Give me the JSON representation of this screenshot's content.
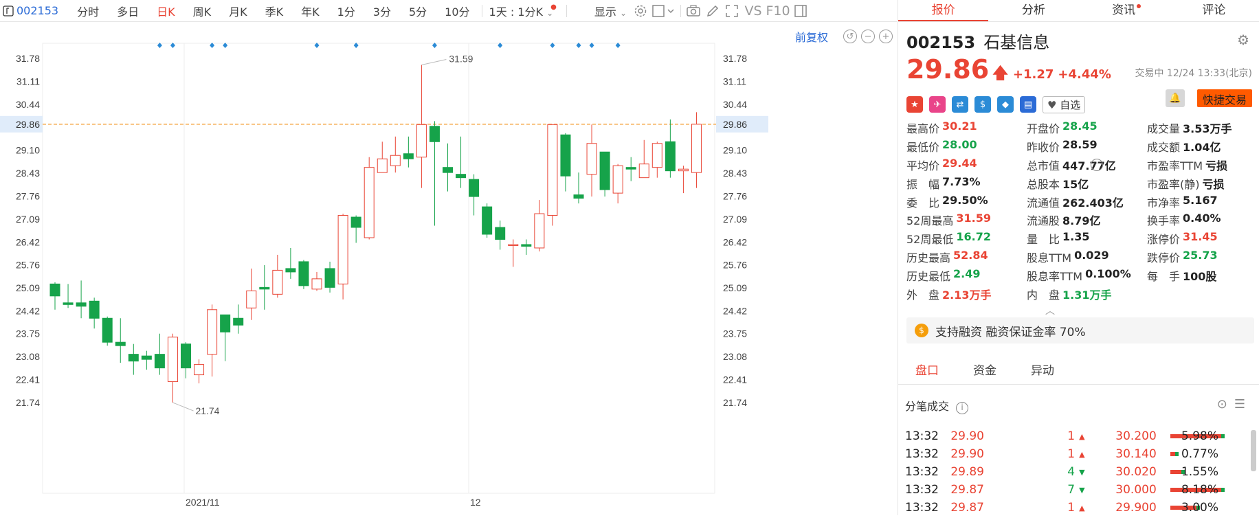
{
  "toolbar": {
    "code": "002153",
    "tabs": [
      "分时",
      "多日",
      "日K",
      "周K",
      "月K",
      "季K",
      "年K",
      "1分",
      "3分",
      "5分",
      "10分"
    ],
    "active_tab": "日K",
    "period_dropdown": "1天 : 1分K",
    "display_dropdown": "显示",
    "icons": [
      "settings-icon",
      "checkbox-icon",
      "camera-icon",
      "pencil-icon",
      "fullscreen-icon",
      "vs-icon",
      "f10-icon",
      "panel-icon"
    ],
    "vs_label": "VS",
    "f10_label": "F10"
  },
  "chart": {
    "restore_label": "前复权",
    "price_axis_left": [
      "31.78",
      "31.11",
      "30.44",
      "29.86",
      "29.10",
      "28.43",
      "27.76",
      "27.09",
      "26.42",
      "25.76",
      "25.09",
      "24.42",
      "23.75",
      "23.08",
      "22.41",
      "21.74"
    ],
    "current_price_label": "29.86",
    "high_annotation": "31.59",
    "low_annotation": "21.74",
    "x_labels": [
      "2021/11",
      "12"
    ]
  },
  "chart_data": {
    "type": "candlestick",
    "current_price": 29.86,
    "ylim": [
      21.74,
      31.78
    ],
    "candles": [
      {
        "o": 25.2,
        "c": 24.85,
        "h": 25.25,
        "l": 24.45
      },
      {
        "o": 24.65,
        "c": 24.6,
        "h": 25.2,
        "l": 24.5
      },
      {
        "o": 24.65,
        "c": 24.55,
        "h": 25.3,
        "l": 24.2
      },
      {
        "o": 24.7,
        "c": 24.2,
        "h": 24.8,
        "l": 23.9
      },
      {
        "o": 24.2,
        "c": 23.5,
        "h": 24.25,
        "l": 23.4
      },
      {
        "o": 23.5,
        "c": 23.4,
        "h": 24.2,
        "l": 22.9
      },
      {
        "o": 23.15,
        "c": 22.95,
        "h": 23.45,
        "l": 22.55
      },
      {
        "o": 23.1,
        "c": 23.0,
        "h": 23.25,
        "l": 22.7
      },
      {
        "o": 23.15,
        "c": 22.75,
        "h": 23.75,
        "l": 22.55
      },
      {
        "o": 22.35,
        "c": 23.65,
        "h": 23.75,
        "l": 21.74
      },
      {
        "o": 23.45,
        "c": 22.75,
        "h": 23.5,
        "l": 22.45
      },
      {
        "o": 22.55,
        "c": 22.85,
        "h": 23.0,
        "l": 22.3
      },
      {
        "o": 23.15,
        "c": 24.45,
        "h": 24.6,
        "l": 22.5
      },
      {
        "o": 24.3,
        "c": 23.8,
        "h": 24.3,
        "l": 22.95
      },
      {
        "o": 24.2,
        "c": 24.0,
        "h": 24.6,
        "l": 23.75
      },
      {
        "o": 24.5,
        "c": 25.0,
        "h": 25.65,
        "l": 24.15
      },
      {
        "o": 25.1,
        "c": 25.05,
        "h": 25.75,
        "l": 24.45
      },
      {
        "o": 24.9,
        "c": 25.6,
        "h": 26.05,
        "l": 24.8
      },
      {
        "o": 25.65,
        "c": 25.55,
        "h": 26.25,
        "l": 25.35
      },
      {
        "o": 25.85,
        "c": 25.15,
        "h": 25.9,
        "l": 25.05
      },
      {
        "o": 25.05,
        "c": 25.35,
        "h": 25.55,
        "l": 25.0
      },
      {
        "o": 25.65,
        "c": 25.1,
        "h": 25.85,
        "l": 24.95
      },
      {
        "o": 25.2,
        "c": 27.2,
        "h": 27.25,
        "l": 24.75
      },
      {
        "o": 27.15,
        "c": 26.85,
        "h": 27.2,
        "l": 26.4
      },
      {
        "o": 26.55,
        "c": 28.6,
        "h": 28.9,
        "l": 26.5
      },
      {
        "o": 28.45,
        "c": 28.85,
        "h": 29.35,
        "l": 28.45
      },
      {
        "o": 28.65,
        "c": 28.95,
        "h": 29.5,
        "l": 28.45
      },
      {
        "o": 29.0,
        "c": 28.85,
        "h": 29.5,
        "l": 28.6
      },
      {
        "o": 28.9,
        "c": 29.85,
        "h": 31.59,
        "l": 28.0
      },
      {
        "o": 29.8,
        "c": 29.35,
        "h": 29.95,
        "l": 26.9
      },
      {
        "o": 28.6,
        "c": 28.45,
        "h": 29.3,
        "l": 27.9
      },
      {
        "o": 28.4,
        "c": 28.3,
        "h": 29.5,
        "l": 28.0
      },
      {
        "o": 28.25,
        "c": 27.75,
        "h": 28.4,
        "l": 27.2
      },
      {
        "o": 27.45,
        "c": 26.65,
        "h": 27.55,
        "l": 26.55
      },
      {
        "o": 26.85,
        "c": 26.5,
        "h": 27.05,
        "l": 26.2
      },
      {
        "o": 26.35,
        "c": 26.35,
        "h": 26.5,
        "l": 25.7
      },
      {
        "o": 26.35,
        "c": 26.3,
        "h": 26.5,
        "l": 26.05
      },
      {
        "o": 26.25,
        "c": 27.25,
        "h": 27.65,
        "l": 26.15
      },
      {
        "o": 27.2,
        "c": 29.85,
        "h": 29.85,
        "l": 26.9
      },
      {
        "o": 29.55,
        "c": 28.35,
        "h": 29.6,
        "l": 27.9
      },
      {
        "o": 27.8,
        "c": 27.7,
        "h": 28.45,
        "l": 27.55
      },
      {
        "o": 28.4,
        "c": 29.3,
        "h": 29.85,
        "l": 27.75
      },
      {
        "o": 29.05,
        "c": 27.95,
        "h": 29.05,
        "l": 27.75
      },
      {
        "o": 27.85,
        "c": 28.65,
        "h": 28.7,
        "l": 27.55
      },
      {
        "o": 28.6,
        "c": 28.55,
        "h": 28.9,
        "l": 28.2
      },
      {
        "o": 28.3,
        "c": 28.7,
        "h": 29.4,
        "l": 28.3
      },
      {
        "o": 28.6,
        "c": 29.3,
        "h": 29.35,
        "l": 28.3
      },
      {
        "o": 29.35,
        "c": 28.5,
        "h": 30.0,
        "l": 28.3
      },
      {
        "o": 28.5,
        "c": 28.55,
        "h": 28.65,
        "l": 27.85
      },
      {
        "o": 28.45,
        "c": 29.86,
        "h": 30.21,
        "l": 28.0
      }
    ],
    "markers_count": 12
  },
  "right": {
    "tabs": [
      "报价",
      "分析",
      "资讯",
      "评论"
    ],
    "active_tab": "报价",
    "stock_code": "002153",
    "stock_name": "石基信息",
    "price": "29.86",
    "change": "+1.27",
    "change_pct": "+4.44%",
    "trade_time": "交易中 12/24 13:33(北京)",
    "watch_label": "自选",
    "quick_trade": "快捷交易",
    "quotes": [
      [
        [
          "最高价",
          "30.21",
          "red"
        ],
        [
          "开盘价",
          "28.45",
          "green"
        ],
        [
          "成交量",
          "3.53万手",
          "dark"
        ]
      ],
      [
        [
          "最低价",
          "28.00",
          "green"
        ],
        [
          "昨收价",
          "28.59",
          "dark"
        ],
        [
          "成交额",
          "1.04亿",
          "dark"
        ]
      ],
      [
        [
          "平均价",
          "29.44",
          "red"
        ],
        [
          "总市值",
          "447.77亿",
          "dark"
        ],
        [
          "市盈率TTM",
          "亏损",
          "dark"
        ]
      ],
      [
        [
          "振　幅",
          "7.73%",
          "dark"
        ],
        [
          "总股本",
          "15亿",
          "dark"
        ],
        [
          "市盈率(静)",
          "亏损",
          "dark"
        ]
      ],
      [
        [
          "委　比",
          "29.50%",
          "dark"
        ],
        [
          "流通值",
          "262.403亿",
          "dark"
        ],
        [
          "市净率",
          "5.167",
          "dark"
        ]
      ],
      [
        [
          "52周最高",
          "31.59",
          "red"
        ],
        [
          "流通股",
          "8.79亿",
          "dark"
        ],
        [
          "换手率",
          "0.40%",
          "dark"
        ]
      ],
      [
        [
          "52周最低",
          "16.72",
          "green"
        ],
        [
          "量　比",
          "1.35",
          "dark"
        ],
        [
          "涨停价",
          "31.45",
          "red"
        ]
      ],
      [
        [
          "历史最高",
          "52.84",
          "red"
        ],
        [
          "股息TTM",
          "0.029",
          "dark"
        ],
        [
          "跌停价",
          "25.73",
          "green"
        ]
      ],
      [
        [
          "历史最低",
          "2.49",
          "green"
        ],
        [
          "股息率TTM",
          "0.100%",
          "dark"
        ],
        [
          "每　手",
          "100股",
          "dark"
        ]
      ],
      [
        [
          "外　盘",
          "2.13万手",
          "red"
        ],
        [
          "内　盘",
          "1.31万手",
          "green"
        ],
        [
          "",
          "",
          "dark"
        ]
      ]
    ],
    "margin_text": "支持融资 融资保证金率 70%",
    "subtabs": [
      "盘口",
      "资金",
      "异动"
    ],
    "active_subtab": "盘口",
    "ticks_title": "分笔成交",
    "ticks": [
      {
        "time": "13:32",
        "price": "29.90",
        "vol": "1",
        "dir": "up",
        "bp": "30.200",
        "pct": "5.98%",
        "bar": 0.98
      },
      {
        "time": "13:32",
        "price": "29.90",
        "vol": "1",
        "dir": "up",
        "bp": "30.140",
        "pct": "0.77%",
        "bar": 0.1
      },
      {
        "time": "13:32",
        "price": "29.89",
        "vol": "4",
        "dir": "down",
        "bp": "30.020",
        "pct": "1.55%",
        "bar": 0.22
      },
      {
        "time": "13:32",
        "price": "29.87",
        "vol": "7",
        "dir": "down",
        "bp": "30.000",
        "pct": "8.18%",
        "bar": 0.98
      },
      {
        "time": "13:32",
        "price": "29.87",
        "vol": "1",
        "dir": "up",
        "bp": "29.900",
        "pct": "3.00%",
        "bar": 0.5
      }
    ]
  }
}
